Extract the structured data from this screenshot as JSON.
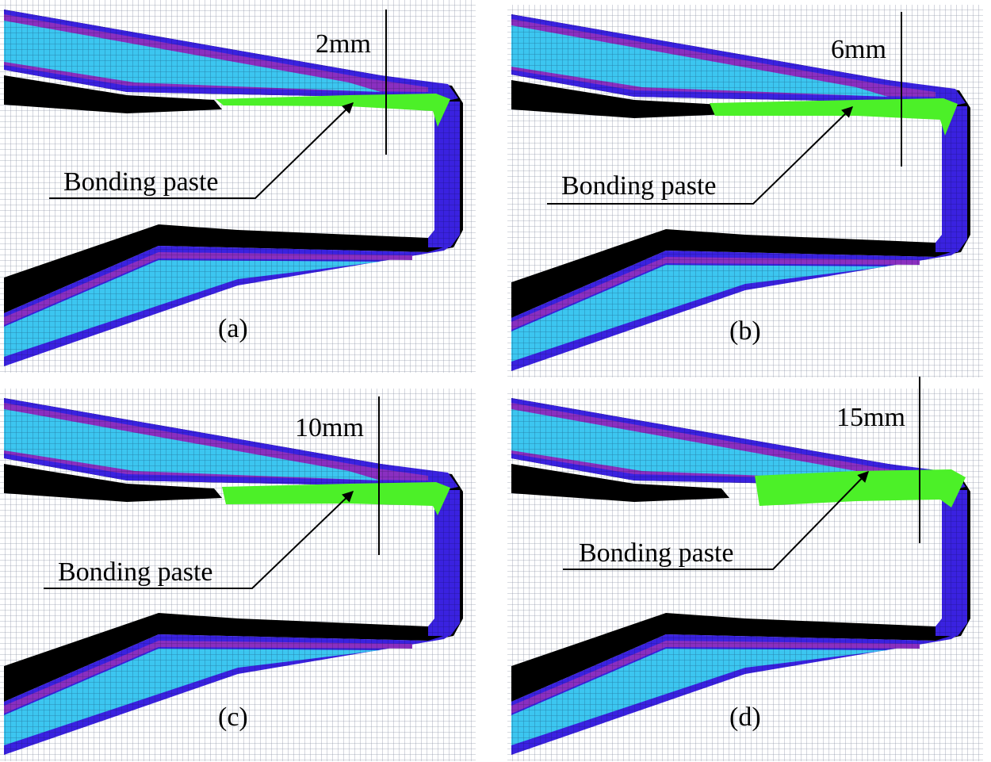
{
  "colors": {
    "core": "#3cc6f0",
    "skin": "#3a22e0",
    "ply": "#8a2fc0",
    "adhesive_layer": "#000000",
    "bonding_paste": "#4cf028"
  },
  "panels": [
    {
      "label": "(a)",
      "dimension": "2mm",
      "annotation": "Bonding paste"
    },
    {
      "label": "(b)",
      "dimension": "6mm",
      "annotation": "Bonding paste"
    },
    {
      "label": "(c)",
      "dimension": "10mm",
      "annotation": "Bonding paste"
    },
    {
      "label": "(d)",
      "dimension": "15mm",
      "annotation": "Bonding paste"
    }
  ]
}
